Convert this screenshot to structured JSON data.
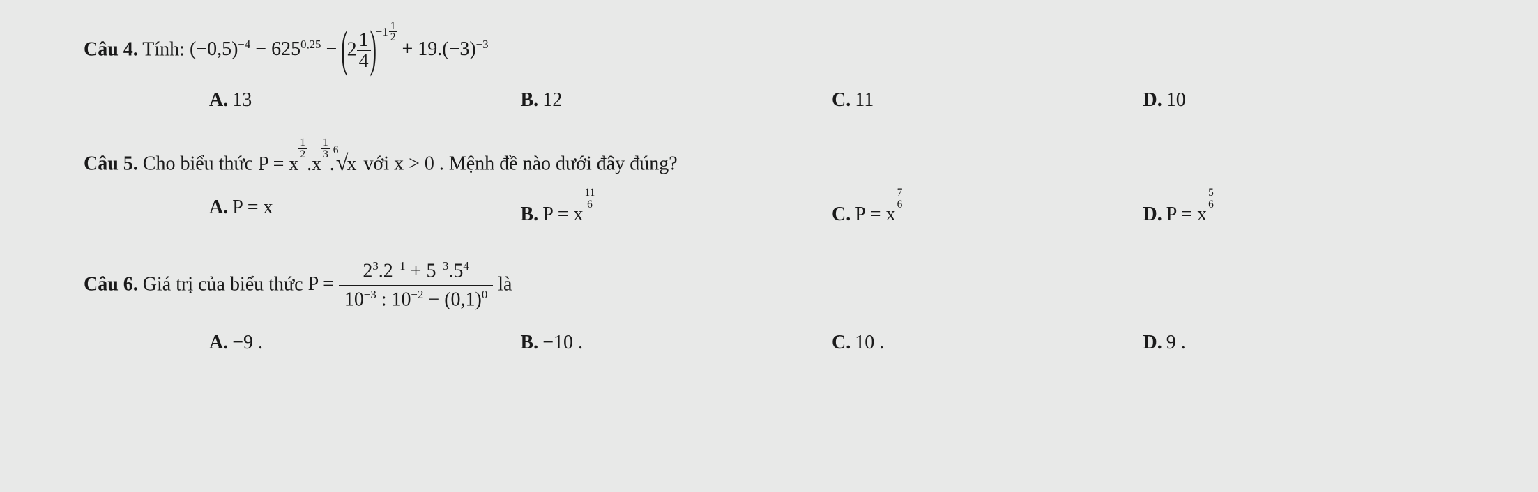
{
  "q4": {
    "label": "Câu 4.",
    "verb": "Tính:",
    "expr_parts": {
      "t1_base": "(−0,5)",
      "t1_exp": "−4",
      "minus1": " − ",
      "t2_base": "625",
      "t2_exp": "0,25",
      "minus2": " − ",
      "mixed_whole": "2",
      "mixed_num": "1",
      "mixed_den": "4",
      "big_exp_neg": "−1",
      "big_exp_frac_num": "1",
      "big_exp_frac_den": "2",
      "plus": " + ",
      "t4_coeff": "19.",
      "t4_base": "(−3)",
      "t4_exp": "−3"
    },
    "options": {
      "A": "13",
      "B": "12",
      "C": "11",
      "D": "10"
    }
  },
  "q5": {
    "label": "Câu 5.",
    "lead": "Cho biểu thức ",
    "P_eq": "P = ",
    "x": "x",
    "exp1_num": "1",
    "exp1_den": "2",
    "dot1": ".",
    "exp2_num": "1",
    "exp2_den": "3",
    "dot2": ".",
    "root_index": "6",
    "root_arg": "x",
    "with": " với ",
    "cond": "x > 0",
    "tail": ". Mệnh đề nào dưới đây đúng?",
    "options": {
      "A": {
        "text": "P = x"
      },
      "B": {
        "prefix": "P = x",
        "num": "11",
        "den": "6"
      },
      "C": {
        "prefix": "P = x",
        "num": "7",
        "den": "6"
      },
      "D": {
        "prefix": "P = x",
        "num": "5",
        "den": "6"
      }
    }
  },
  "q6": {
    "label": "Câu 6.",
    "lead": "Giá trị của biểu thức ",
    "P_eq": "P = ",
    "num": {
      "a_base": "2",
      "a_exp": "3",
      "dot1": ".",
      "b_base": "2",
      "b_exp": "−1",
      "plus": " + ",
      "c_base": "5",
      "c_exp": "−3",
      "dot2": ".",
      "d_base": "5",
      "d_exp": "4"
    },
    "den": {
      "a_base": "10",
      "a_exp": "−3",
      "div": " : ",
      "b_base": "10",
      "b_exp": "−2",
      "minus": " − ",
      "c_base": "(0,1)",
      "c_exp": "0"
    },
    "tail": " là",
    "options": {
      "A": "−9 .",
      "B": "−10 .",
      "C": "10 .",
      "D": "9 ."
    }
  },
  "labels": {
    "A": "A.",
    "B": "B.",
    "C": "C.",
    "D": "D."
  }
}
